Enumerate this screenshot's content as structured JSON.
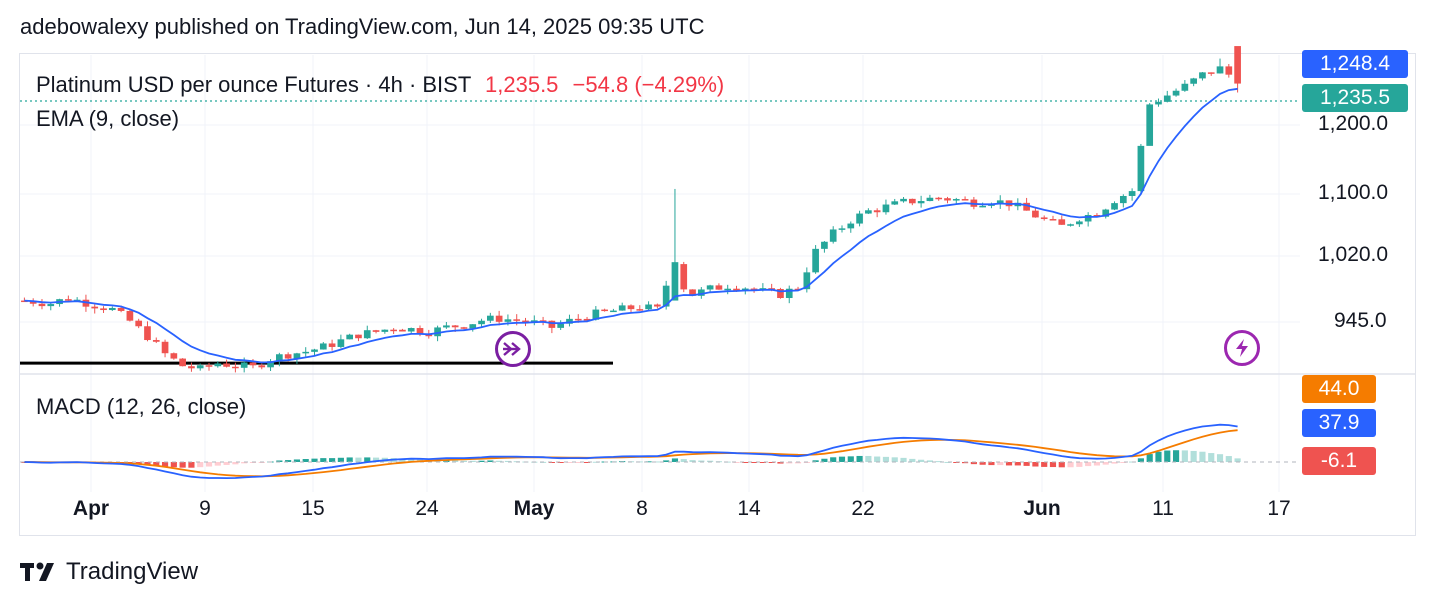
{
  "header": {
    "published_text": "adebowalexy published on TradingView.com, Jun 14, 2025 09:35 UTC"
  },
  "legend": {
    "symbol": "Platinum USD per ounce Futures · 4h · BIST",
    "last_price": "1,235.5",
    "change": "−54.8 (−4.29%)",
    "ema_label": "EMA (9, close)",
    "macd_label": "MACD (12, 26, close)"
  },
  "price_axis": {
    "ticks": [
      "1,200.0",
      "1,100.0",
      "1,020.0",
      "945.0"
    ],
    "ema_tag": "1,248.4",
    "last_tag": "1,235.5"
  },
  "macd_axis": {
    "signal_tag": "44.0",
    "macd_tag": "37.9",
    "hist_tag": "-6.1"
  },
  "time_axis": {
    "labels": [
      {
        "text": "Apr",
        "bold": true
      },
      {
        "text": "9",
        "bold": false
      },
      {
        "text": "15",
        "bold": false
      },
      {
        "text": "24",
        "bold": false
      },
      {
        "text": "May",
        "bold": true
      },
      {
        "text": "8",
        "bold": false
      },
      {
        "text": "14",
        "bold": false
      },
      {
        "text": "22",
        "bold": false
      },
      {
        "text": "Jun",
        "bold": true
      },
      {
        "text": "11",
        "bold": false
      },
      {
        "text": "17",
        "bold": false
      }
    ]
  },
  "footer": {
    "brand": "TradingView"
  },
  "colors": {
    "up": "#26a69a",
    "down": "#ef5350",
    "ema": "#2962ff",
    "macd": "#2962ff",
    "signal": "#f57c00",
    "hist_up": "#26a69a",
    "hist_up_light": "#b2dfdb",
    "hist_down": "#ef5350",
    "hist_down_light": "#ffcdd2"
  },
  "icons": {
    "replay": "fast-forward-icon",
    "alert": "lightning-icon",
    "logo": "tradingview-logo-icon"
  },
  "chart_data": {
    "type": "candlestick",
    "title": "Platinum USD per ounce Futures · 4h · BIST",
    "ylim": [
      905,
      1260
    ],
    "support_level": 915,
    "price_path": [
      [
        0,
        985
      ],
      [
        3,
        982
      ],
      [
        5,
        988
      ],
      [
        8,
        980
      ],
      [
        10,
        975
      ],
      [
        12,
        962
      ],
      [
        14,
        945
      ],
      [
        16,
        925
      ],
      [
        18,
        912
      ],
      [
        20,
        908
      ],
      [
        22,
        915
      ],
      [
        24,
        912
      ],
      [
        26,
        910
      ],
      [
        28,
        920
      ],
      [
        30,
        925
      ],
      [
        32,
        928
      ],
      [
        34,
        933
      ],
      [
        36,
        940
      ],
      [
        38,
        947
      ],
      [
        40,
        950
      ],
      [
        42,
        955
      ],
      [
        44,
        953
      ],
      [
        46,
        950
      ],
      [
        48,
        955
      ],
      [
        50,
        958
      ],
      [
        52,
        963
      ],
      [
        54,
        965
      ],
      [
        56,
        963
      ],
      [
        58,
        960
      ],
      [
        60,
        955
      ],
      [
        62,
        962
      ],
      [
        64,
        968
      ],
      [
        66,
        972
      ],
      [
        68,
        975
      ],
      [
        70,
        978
      ],
      [
        72,
        975
      ],
      [
        74,
        1030
      ],
      [
        75,
        1000
      ],
      [
        76,
        992
      ],
      [
        78,
        998
      ],
      [
        80,
        1002
      ],
      [
        82,
        1000
      ],
      [
        84,
        995
      ],
      [
        86,
        992
      ],
      [
        88,
        1000
      ],
      [
        90,
        1040
      ],
      [
        92,
        1060
      ],
      [
        94,
        1075
      ],
      [
        96,
        1085
      ],
      [
        98,
        1090
      ],
      [
        100,
        1095
      ],
      [
        102,
        1098
      ],
      [
        104,
        1100
      ],
      [
        106,
        1098
      ],
      [
        108,
        1095
      ],
      [
        110,
        1097
      ],
      [
        112,
        1094
      ],
      [
        114,
        1085
      ],
      [
        116,
        1075
      ],
      [
        118,
        1068
      ],
      [
        120,
        1078
      ],
      [
        122,
        1083
      ],
      [
        124,
        1098
      ],
      [
        126,
        1108
      ],
      [
        128,
        1205
      ],
      [
        130,
        1215
      ],
      [
        132,
        1225
      ],
      [
        134,
        1238
      ],
      [
        136,
        1245
      ],
      [
        137,
        1238
      ],
      [
        138,
        1232
      ]
    ],
    "macd": {
      "macd_last": 37.9,
      "signal_last": 44.0,
      "hist_last": -6.1
    }
  }
}
